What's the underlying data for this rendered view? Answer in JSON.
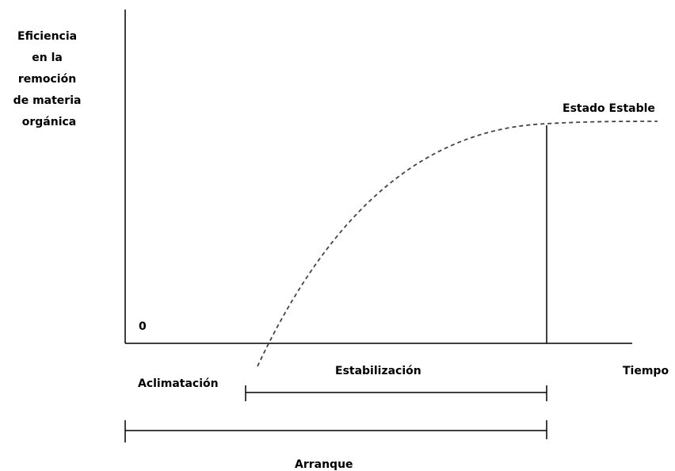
{
  "y_axis_label": [
    "Eficiencia",
    "en la",
    "remoción",
    "de materia",
    "orgánica"
  ],
  "x_axis_label": "Tiempo",
  "origin_label": "0",
  "curve_label": "Estado Estable",
  "phases": {
    "acclimation": "Aclimatación",
    "stabilization": "Estabilización",
    "startup": "Arranque"
  },
  "colors": {
    "line": "#000000",
    "curve": "#444444",
    "background": "#ffffff"
  }
}
